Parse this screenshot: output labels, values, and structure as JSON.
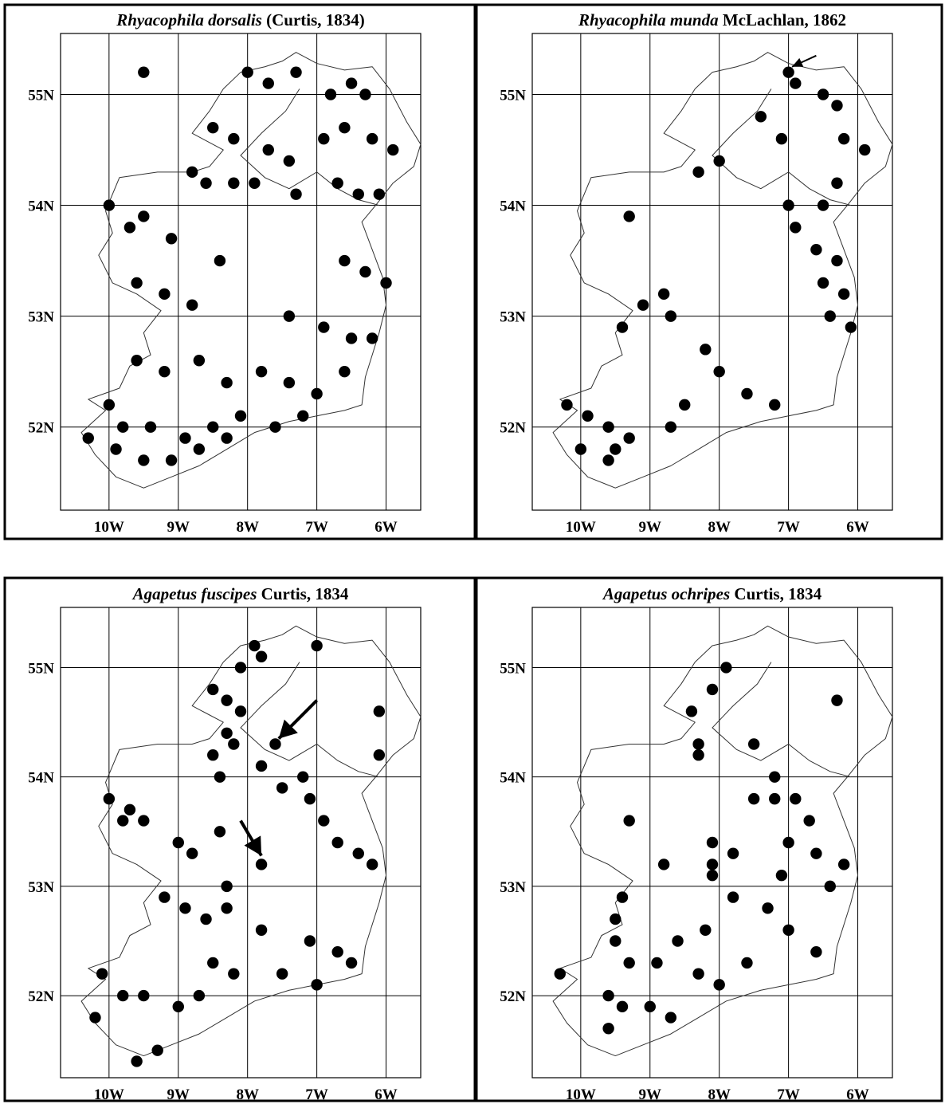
{
  "panels": [
    {
      "id": "p1",
      "title_genus_species": "Rhyacophila dorsalis",
      "title_authority": " (Curtis, 1834)",
      "arrows": [],
      "records": [
        [
          -9.5,
          55.2
        ],
        [
          -8.0,
          55.2
        ],
        [
          -7.7,
          55.1
        ],
        [
          -7.3,
          55.2
        ],
        [
          -6.8,
          55.0
        ],
        [
          -6.5,
          55.1
        ],
        [
          -6.3,
          55.0
        ],
        [
          -8.5,
          54.7
        ],
        [
          -8.2,
          54.6
        ],
        [
          -7.7,
          54.5
        ],
        [
          -7.4,
          54.4
        ],
        [
          -6.9,
          54.6
        ],
        [
          -6.6,
          54.7
        ],
        [
          -6.2,
          54.6
        ],
        [
          -5.9,
          54.5
        ],
        [
          -8.8,
          54.3
        ],
        [
          -8.6,
          54.2
        ],
        [
          -8.2,
          54.2
        ],
        [
          -7.9,
          54.2
        ],
        [
          -7.3,
          54.1
        ],
        [
          -6.7,
          54.2
        ],
        [
          -6.4,
          54.1
        ],
        [
          -6.1,
          54.1
        ],
        [
          -10.0,
          54.0
        ],
        [
          -9.7,
          53.8
        ],
        [
          -9.5,
          53.9
        ],
        [
          -9.1,
          53.7
        ],
        [
          -8.4,
          53.5
        ],
        [
          -6.6,
          53.5
        ],
        [
          -6.3,
          53.4
        ],
        [
          -6.0,
          53.3
        ],
        [
          -9.6,
          53.3
        ],
        [
          -9.2,
          53.2
        ],
        [
          -8.8,
          53.1
        ],
        [
          -7.4,
          53.0
        ],
        [
          -6.9,
          52.9
        ],
        [
          -6.5,
          52.8
        ],
        [
          -6.2,
          52.8
        ],
        [
          -9.6,
          52.6
        ],
        [
          -9.2,
          52.5
        ],
        [
          -8.7,
          52.6
        ],
        [
          -8.3,
          52.4
        ],
        [
          -7.8,
          52.5
        ],
        [
          -7.4,
          52.4
        ],
        [
          -7.0,
          52.3
        ],
        [
          -6.6,
          52.5
        ],
        [
          -10.0,
          52.2
        ],
        [
          -9.8,
          52.0
        ],
        [
          -9.4,
          52.0
        ],
        [
          -8.9,
          51.9
        ],
        [
          -8.5,
          52.0
        ],
        [
          -8.1,
          52.1
        ],
        [
          -7.6,
          52.0
        ],
        [
          -7.2,
          52.1
        ],
        [
          -10.3,
          51.9
        ],
        [
          -9.9,
          51.8
        ],
        [
          -9.5,
          51.7
        ],
        [
          -9.1,
          51.7
        ],
        [
          -8.7,
          51.8
        ],
        [
          -8.3,
          51.9
        ]
      ]
    },
    {
      "id": "p2",
      "title_genus_species": "Rhyacophila munda",
      "title_authority": " McLachlan, 1862",
      "arrows": [
        {
          "x1": -6.6,
          "y1": 55.35,
          "x2": -6.95,
          "y2": 55.25,
          "size": "small"
        }
      ],
      "records": [
        [
          -7.0,
          55.2
        ],
        [
          -6.9,
          55.1
        ],
        [
          -6.5,
          55.0
        ],
        [
          -6.3,
          54.9
        ],
        [
          -7.4,
          54.8
        ],
        [
          -7.1,
          54.6
        ],
        [
          -6.2,
          54.6
        ],
        [
          -5.9,
          54.5
        ],
        [
          -8.3,
          54.3
        ],
        [
          -8.0,
          54.4
        ],
        [
          -6.3,
          54.2
        ],
        [
          -7.0,
          54.0
        ],
        [
          -6.5,
          54.0
        ],
        [
          -9.3,
          53.9
        ],
        [
          -6.9,
          53.8
        ],
        [
          -6.6,
          53.6
        ],
        [
          -6.3,
          53.5
        ],
        [
          -6.5,
          53.3
        ],
        [
          -6.2,
          53.2
        ],
        [
          -6.4,
          53.0
        ],
        [
          -6.1,
          52.9
        ],
        [
          -8.7,
          53.0
        ],
        [
          -9.4,
          52.9
        ],
        [
          -9.1,
          53.1
        ],
        [
          -8.8,
          53.2
        ],
        [
          -8.2,
          52.7
        ],
        [
          -8.0,
          52.5
        ],
        [
          -7.6,
          52.3
        ],
        [
          -7.2,
          52.2
        ],
        [
          -8.5,
          52.2
        ],
        [
          -8.7,
          52.0
        ],
        [
          -10.2,
          52.2
        ],
        [
          -9.9,
          52.1
        ],
        [
          -9.6,
          52.0
        ],
        [
          -9.5,
          51.8
        ],
        [
          -9.3,
          51.9
        ],
        [
          -10.0,
          51.8
        ],
        [
          -9.6,
          51.7
        ]
      ]
    },
    {
      "id": "p3",
      "title_genus_species": "Agapetus fuscipes",
      "title_authority": " Curtis, 1834",
      "arrows": [
        {
          "x1": -7.0,
          "y1": 54.7,
          "x2": -7.55,
          "y2": 54.35,
          "size": "large"
        },
        {
          "x1": -8.1,
          "y1": 53.6,
          "x2": -7.8,
          "y2": 53.28,
          "size": "large"
        }
      ],
      "records": [
        [
          -7.9,
          55.2
        ],
        [
          -7.8,
          55.1
        ],
        [
          -7.0,
          55.2
        ],
        [
          -8.1,
          55.0
        ],
        [
          -8.5,
          54.8
        ],
        [
          -8.3,
          54.7
        ],
        [
          -8.1,
          54.6
        ],
        [
          -8.3,
          54.4
        ],
        [
          -8.2,
          54.3
        ],
        [
          -8.5,
          54.2
        ],
        [
          -8.4,
          54.0
        ],
        [
          -7.6,
          54.3
        ],
        [
          -7.8,
          54.1
        ],
        [
          -7.2,
          54.0
        ],
        [
          -6.1,
          54.6
        ],
        [
          -6.1,
          54.2
        ],
        [
          -10.0,
          53.8
        ],
        [
          -9.7,
          53.7
        ],
        [
          -9.5,
          53.6
        ],
        [
          -9.8,
          53.6
        ],
        [
          -9.0,
          53.4
        ],
        [
          -8.8,
          53.3
        ],
        [
          -8.4,
          53.5
        ],
        [
          -7.5,
          53.9
        ],
        [
          -7.1,
          53.8
        ],
        [
          -6.9,
          53.6
        ],
        [
          -6.7,
          53.4
        ],
        [
          -6.4,
          53.3
        ],
        [
          -6.2,
          53.2
        ],
        [
          -7.8,
          53.2
        ],
        [
          -8.3,
          53.0
        ],
        [
          -9.2,
          52.9
        ],
        [
          -8.9,
          52.8
        ],
        [
          -8.6,
          52.7
        ],
        [
          -8.3,
          52.8
        ],
        [
          -7.8,
          52.6
        ],
        [
          -7.1,
          52.5
        ],
        [
          -6.7,
          52.4
        ],
        [
          -6.5,
          52.3
        ],
        [
          -7.5,
          52.2
        ],
        [
          -7.0,
          52.1
        ],
        [
          -8.5,
          52.3
        ],
        [
          -8.2,
          52.2
        ],
        [
          -10.1,
          52.2
        ],
        [
          -9.8,
          52.0
        ],
        [
          -9.5,
          52.0
        ],
        [
          -9.0,
          51.9
        ],
        [
          -8.7,
          52.0
        ],
        [
          -10.2,
          51.8
        ],
        [
          -9.6,
          51.4
        ],
        [
          -9.3,
          51.5
        ]
      ]
    },
    {
      "id": "p4",
      "title_genus_species": "Agapetus ochripes",
      "title_authority": " Curtis, 1834",
      "arrows": [],
      "records": [
        [
          -7.9,
          55.0
        ],
        [
          -8.1,
          54.8
        ],
        [
          -8.4,
          54.6
        ],
        [
          -8.3,
          54.3
        ],
        [
          -8.3,
          54.2
        ],
        [
          -7.5,
          54.3
        ],
        [
          -6.3,
          54.7
        ],
        [
          -7.2,
          54.0
        ],
        [
          -9.3,
          53.6
        ],
        [
          -8.8,
          53.2
        ],
        [
          -8.1,
          53.4
        ],
        [
          -8.1,
          53.2
        ],
        [
          -7.8,
          53.3
        ],
        [
          -7.5,
          53.8
        ],
        [
          -7.2,
          53.8
        ],
        [
          -6.9,
          53.8
        ],
        [
          -6.7,
          53.6
        ],
        [
          -7.0,
          53.4
        ],
        [
          -6.6,
          53.3
        ],
        [
          -6.2,
          53.2
        ],
        [
          -6.4,
          53.0
        ],
        [
          -7.1,
          53.1
        ],
        [
          -7.3,
          52.8
        ],
        [
          -7.0,
          52.6
        ],
        [
          -8.1,
          53.1
        ],
        [
          -7.8,
          52.9
        ],
        [
          -8.2,
          52.6
        ],
        [
          -8.6,
          52.5
        ],
        [
          -8.9,
          52.3
        ],
        [
          -8.3,
          52.2
        ],
        [
          -8.0,
          52.1
        ],
        [
          -7.6,
          52.3
        ],
        [
          -6.6,
          52.4
        ],
        [
          -9.4,
          52.9
        ],
        [
          -9.5,
          52.7
        ],
        [
          -9.5,
          52.5
        ],
        [
          -9.3,
          52.3
        ],
        [
          -10.3,
          52.2
        ],
        [
          -9.6,
          52.0
        ],
        [
          -9.4,
          51.9
        ],
        [
          -9.0,
          51.9
        ],
        [
          -8.7,
          51.8
        ],
        [
          -9.6,
          51.7
        ]
      ]
    }
  ],
  "axes": {
    "lat_labels": [
      "55N",
      "54N",
      "53N",
      "52N"
    ],
    "lon_labels": [
      "10W",
      "9W",
      "8W",
      "7W",
      "6W"
    ],
    "lat_values": [
      55,
      54,
      53,
      52
    ],
    "lon_values": [
      -10,
      -9,
      -8,
      -7,
      -6
    ],
    "lon_range": [
      -10.7,
      -5.5
    ],
    "lat_range": [
      51.25,
      55.55
    ]
  },
  "colors": {
    "frame": "#000000",
    "dot": "#000000",
    "grid": "#000000",
    "coast": "#333333",
    "background": "#ffffff"
  }
}
